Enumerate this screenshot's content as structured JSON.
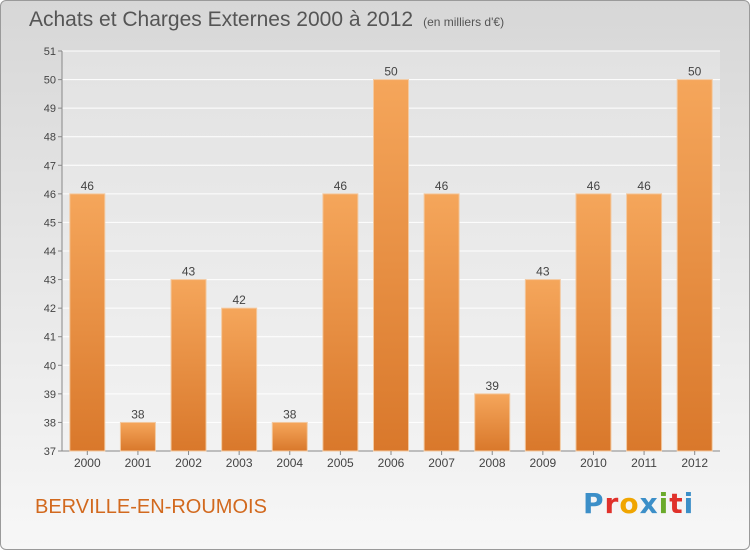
{
  "page": {
    "title": "Achats et Charges Externes 2000 à 2012",
    "unit": "(en milliers d'€)",
    "town": "BERVILLE-EN-ROUMOIS",
    "logo": "Proxiti"
  },
  "colors": {
    "bar_light": "#f5a65b",
    "bar_dark": "#d9782b",
    "town": "#d2691e",
    "logo_letters": [
      "#3c8fc8",
      "#e0312b",
      "#f0a500",
      "#3c8fc8",
      "#6aaa2a",
      "#e0312b",
      "#3c8fc8"
    ]
  },
  "chart_data": {
    "type": "bar",
    "categories": [
      "2000",
      "2001",
      "2002",
      "2003",
      "2004",
      "2005",
      "2006",
      "2007",
      "2008",
      "2009",
      "2010",
      "2011",
      "2012"
    ],
    "values": [
      46,
      38,
      43,
      42,
      38,
      46,
      50,
      46,
      39,
      43,
      46,
      46,
      50
    ],
    "ylim": [
      37,
      51
    ],
    "yticks": [
      37,
      38,
      39,
      40,
      41,
      42,
      43,
      44,
      45,
      46,
      47,
      48,
      49,
      50,
      51
    ],
    "grid": true,
    "data_labels": true
  }
}
